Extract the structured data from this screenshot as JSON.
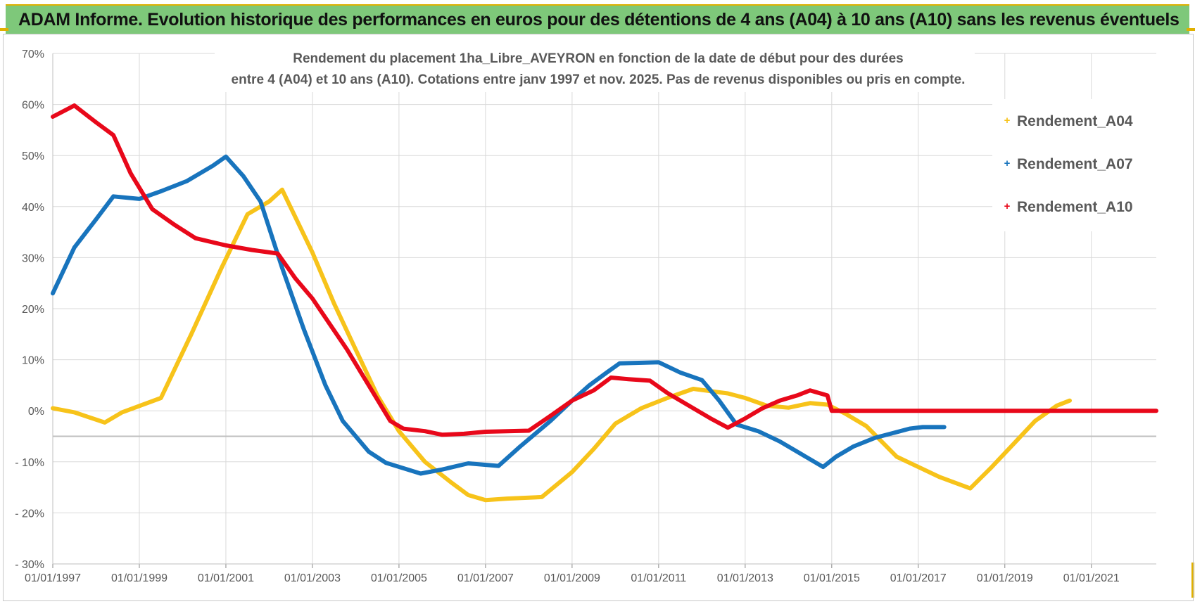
{
  "banner": {
    "title": "ADAM Informe. Evolution historique des performances en euros pour des détentions de 4 ans (A04) à 10 ans (A10) sans les revenus éventuels"
  },
  "colors": {
    "banner_bg": "#7ec87a",
    "A04": "#f7c31a",
    "A07": "#1874bd",
    "A10": "#e8081a",
    "grid": "#d9d9d9"
  },
  "chart_data": {
    "type": "line",
    "title_line1": "Rendement du placement 1ha_Libre_AVEYRON en fonction de la date de début pour des durées",
    "title_line2": "entre 4 (A04) et 10 ans (A10). Cotations entre janv 1997 et nov. 2025. Pas de revenus disponibles ou pris en compte.",
    "xlabel": "",
    "ylabel": "",
    "xlim": [
      1997.0,
      2022.5
    ],
    "ylim": [
      -30,
      70
    ],
    "y_ticks": [
      -30,
      -20,
      -10,
      0,
      10,
      20,
      30,
      40,
      50,
      60,
      70
    ],
    "y_tick_labels": [
      "- 30%",
      "- 20%",
      "- 10%",
      "0%",
      "10%",
      "20%",
      "30%",
      "40%",
      "50%",
      "60%",
      "70%"
    ],
    "x_ticks": [
      1997,
      1999,
      2001,
      2003,
      2005,
      2007,
      2009,
      2011,
      2013,
      2015,
      2017,
      2019,
      2021
    ],
    "x_tick_labels": [
      "01/01/1997",
      "01/01/1999",
      "01/01/2001",
      "01/01/2003",
      "01/01/2005",
      "01/01/2007",
      "01/01/2009",
      "01/01/2011",
      "01/01/2013",
      "01/01/2015",
      "01/01/2017",
      "01/01/2019",
      "01/01/2021"
    ],
    "legend_position": "right",
    "series": [
      {
        "name": "Rendement_A04",
        "color": "#f7c31a",
        "points": [
          [
            1997.0,
            0.5
          ],
          [
            1997.5,
            -0.3
          ],
          [
            1998.2,
            -2.3
          ],
          [
            1998.6,
            -0.3
          ],
          [
            1999.5,
            2.5
          ],
          [
            2000.2,
            15
          ],
          [
            2000.9,
            28
          ],
          [
            2001.5,
            38.5
          ],
          [
            2002.0,
            41
          ],
          [
            2002.3,
            43.3
          ],
          [
            2003.0,
            31
          ],
          [
            2003.5,
            21
          ],
          [
            2004.0,
            12
          ],
          [
            2004.5,
            3
          ],
          [
            2005.0,
            -4
          ],
          [
            2005.6,
            -10
          ],
          [
            2006.2,
            -14
          ],
          [
            2006.6,
            -16.5
          ],
          [
            2007.0,
            -17.5
          ],
          [
            2007.5,
            -17.2
          ],
          [
            2008.3,
            -16.9
          ],
          [
            2009.0,
            -12
          ],
          [
            2009.5,
            -7.5
          ],
          [
            2010.0,
            -2.5
          ],
          [
            2010.6,
            0.5
          ],
          [
            2011.2,
            2.5
          ],
          [
            2011.8,
            4.3
          ],
          [
            2012.6,
            3.4
          ],
          [
            2013.0,
            2.5
          ],
          [
            2013.5,
            1
          ],
          [
            2014.0,
            0.6
          ],
          [
            2014.5,
            1.5
          ],
          [
            2014.9,
            1.2
          ],
          [
            2015.3,
            -0.5
          ],
          [
            2015.8,
            -3
          ],
          [
            2016.5,
            -9
          ],
          [
            2017.0,
            -11
          ],
          [
            2017.5,
            -13
          ],
          [
            2018.2,
            -15.2
          ],
          [
            2018.7,
            -11
          ],
          [
            2019.2,
            -6.5
          ],
          [
            2019.7,
            -2
          ],
          [
            2020.2,
            1
          ],
          [
            2020.5,
            2
          ]
        ]
      },
      {
        "name": "Rendement_A07",
        "color": "#1874bd",
        "points": [
          [
            1997.0,
            23
          ],
          [
            1997.5,
            32
          ],
          [
            1998.0,
            37.5
          ],
          [
            1998.4,
            42
          ],
          [
            1999.0,
            41.5
          ],
          [
            1999.5,
            43
          ],
          [
            2000.1,
            45
          ],
          [
            2000.7,
            48
          ],
          [
            2001.0,
            49.8
          ],
          [
            2001.4,
            46
          ],
          [
            2001.8,
            41
          ],
          [
            2002.3,
            28
          ],
          [
            2002.8,
            16
          ],
          [
            2003.3,
            5
          ],
          [
            2003.7,
            -2
          ],
          [
            2004.3,
            -8
          ],
          [
            2004.7,
            -10.2
          ],
          [
            2005.5,
            -12.3
          ],
          [
            2006.0,
            -11.5
          ],
          [
            2006.6,
            -10.3
          ],
          [
            2007.3,
            -10.8
          ],
          [
            2007.8,
            -7
          ],
          [
            2008.5,
            -2
          ],
          [
            2009.0,
            2
          ],
          [
            2009.4,
            5
          ],
          [
            2009.8,
            7.5
          ],
          [
            2010.1,
            9.3
          ],
          [
            2011.0,
            9.5
          ],
          [
            2011.5,
            7.5
          ],
          [
            2012.0,
            6
          ],
          [
            2012.4,
            2
          ],
          [
            2012.8,
            -2.7
          ],
          [
            2013.3,
            -4
          ],
          [
            2013.8,
            -6
          ],
          [
            2014.5,
            -9.5
          ],
          [
            2014.8,
            -11
          ],
          [
            2015.1,
            -9
          ],
          [
            2015.5,
            -7
          ],
          [
            2016.0,
            -5.3
          ],
          [
            2016.8,
            -3.5
          ],
          [
            2017.1,
            -3.2
          ],
          [
            2017.6,
            -3.2
          ]
        ]
      },
      {
        "name": "Rendement_A10",
        "color": "#e8081a",
        "points": [
          [
            1997.0,
            57.6
          ],
          [
            1997.5,
            59.8
          ],
          [
            1998.0,
            56.5
          ],
          [
            1998.4,
            54
          ],
          [
            1998.8,
            46.5
          ],
          [
            1999.3,
            39.5
          ],
          [
            1999.8,
            36.5
          ],
          [
            2000.3,
            33.8
          ],
          [
            2001.0,
            32.4
          ],
          [
            2001.6,
            31.5
          ],
          [
            2002.2,
            30.8
          ],
          [
            2002.6,
            26
          ],
          [
            2003.0,
            22
          ],
          [
            2003.4,
            17
          ],
          [
            2003.8,
            12
          ],
          [
            2004.3,
            5
          ],
          [
            2004.8,
            -2
          ],
          [
            2005.1,
            -3.5
          ],
          [
            2005.6,
            -4
          ],
          [
            2006.0,
            -4.7
          ],
          [
            2006.5,
            -4.5
          ],
          [
            2007.0,
            -4.1
          ],
          [
            2007.5,
            -4
          ],
          [
            2008.0,
            -3.9
          ],
          [
            2008.5,
            -1
          ],
          [
            2009.0,
            2
          ],
          [
            2009.5,
            4
          ],
          [
            2009.9,
            6.5
          ],
          [
            2010.3,
            6.2
          ],
          [
            2010.8,
            5.9
          ],
          [
            2011.2,
            3.5
          ],
          [
            2011.7,
            1
          ],
          [
            2012.2,
            -1.5
          ],
          [
            2012.6,
            -3.3
          ],
          [
            2013.0,
            -1.5
          ],
          [
            2013.4,
            0.5
          ],
          [
            2013.8,
            2
          ],
          [
            2014.2,
            3
          ],
          [
            2014.5,
            4
          ],
          [
            2014.9,
            3
          ],
          [
            2015.0,
            0
          ],
          [
            2017.0,
            0
          ],
          [
            2019.0,
            0
          ],
          [
            2021.0,
            0
          ],
          [
            2022.5,
            0
          ]
        ]
      }
    ]
  }
}
